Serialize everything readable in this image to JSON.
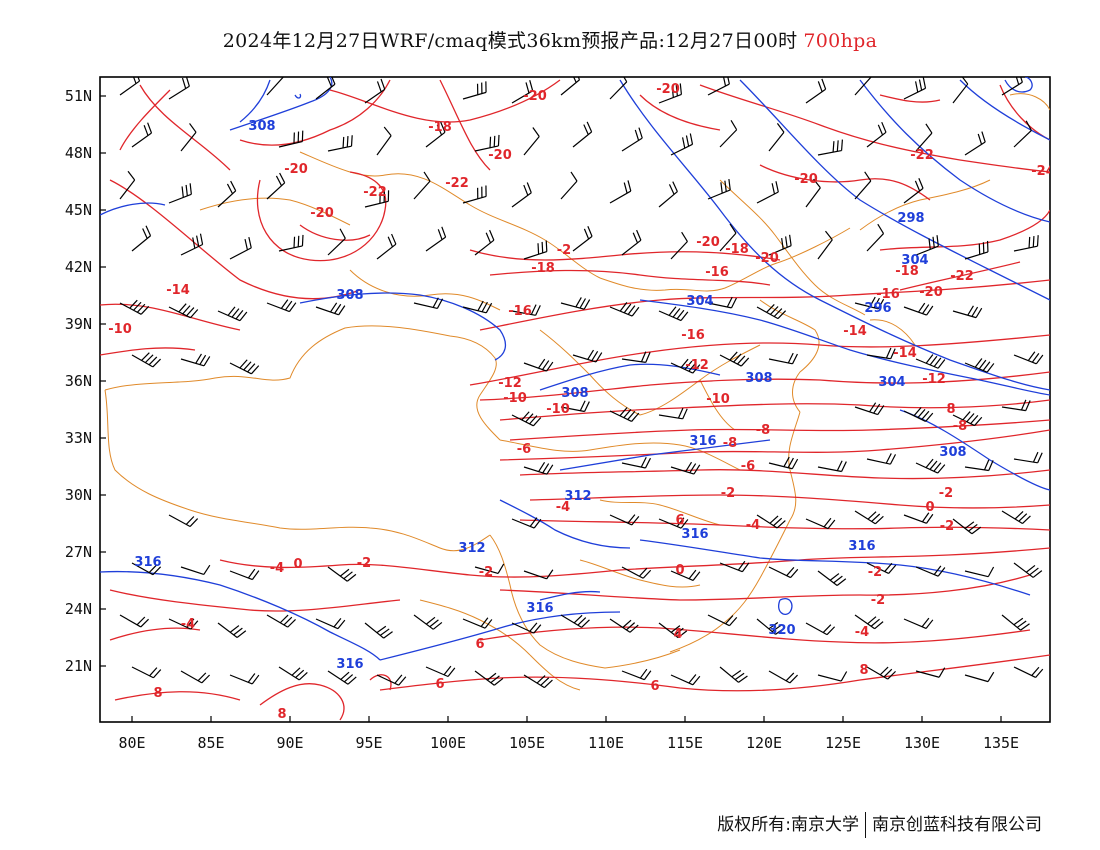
{
  "title": {
    "main": "2024年12月27日WRF/cmaq模式36km预报产品:12月27日00时",
    "level": "700hpa"
  },
  "axes": {
    "lat_labels": [
      "51N",
      "48N",
      "45N",
      "42N",
      "39N",
      "36N",
      "33N",
      "30N",
      "27N",
      "24N",
      "21N"
    ],
    "lon_labels": [
      "80E",
      "85E",
      "90E",
      "95E",
      "100E",
      "105E",
      "110E",
      "115E",
      "120E",
      "125E",
      "130E",
      "135E"
    ]
  },
  "temperature_labels": [
    "-20",
    "-20",
    "-18",
    "-20",
    "-20",
    "-22",
    "-22",
    "-20",
    "-20",
    "-22",
    "-24",
    "-2",
    "-20",
    "-18",
    "-20",
    "-16",
    "-18",
    "-14",
    "-16",
    "-18",
    "-22",
    "-16",
    "-20",
    "-10",
    "-16",
    "-14",
    "-14",
    "-12",
    "-12",
    "-12",
    "-10",
    "-10",
    "-10",
    "-8",
    "-8",
    "-8",
    "-6",
    "-6",
    "-2",
    "-4",
    "-4",
    "-2",
    "-2",
    "0",
    "0",
    "-2",
    "0",
    "-2",
    "-2",
    "-4",
    "-2",
    "-4",
    "-4",
    "4",
    "6",
    "6",
    "6",
    "8",
    "8",
    "8",
    "8",
    "6"
  ],
  "geopotential_labels": [
    "308",
    "308",
    "304",
    "304",
    "298",
    "296",
    "308",
    "308",
    "304",
    "312",
    "316",
    "312",
    "316",
    "316",
    "316",
    "316",
    "316",
    "320",
    "308"
  ],
  "copyright": {
    "left": "版权所有:南京大学",
    "right": "南京创蓝科技有限公司"
  },
  "colors": {
    "temperature": "#e0262b",
    "geopotential": "#1f3fd9",
    "boundary": "#e08a2a",
    "wind_barb": "#000000"
  }
}
